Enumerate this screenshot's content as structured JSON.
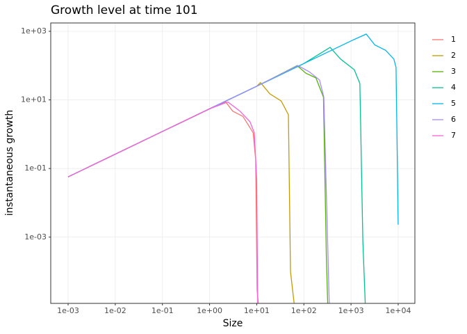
{
  "chart_data": {
    "type": "line",
    "title": "Growth level at time 101",
    "x_label": "Size",
    "y_label": "instantaneous growth",
    "log_x": true,
    "log_y": true,
    "grid": true,
    "xlim": [
      0.000428,
      22600
    ],
    "ylim": [
      1.17e-05,
      1750
    ],
    "xticks": [
      {
        "value": 0.001,
        "label": "1e-03"
      },
      {
        "value": 0.01,
        "label": "1e-02"
      },
      {
        "value": 0.1,
        "label": "1e-01"
      },
      {
        "value": 1,
        "label": "1e+00"
      },
      {
        "value": 10,
        "label": "1e+01"
      },
      {
        "value": 100,
        "label": "1e+02"
      },
      {
        "value": 1000,
        "label": "1e+03"
      },
      {
        "value": 10000,
        "label": "1e+04"
      }
    ],
    "yticks": [
      {
        "value": 0.001,
        "label": "1e-03"
      },
      {
        "value": 0.1,
        "label": "1e-01"
      },
      {
        "value": 10,
        "label": "1e+01"
      },
      {
        "value": 1000,
        "label": "1e+03"
      }
    ],
    "series": [
      {
        "name": "1",
        "color": "#F8766D",
        "x": [
          0.001,
          0.1,
          1,
          2.2,
          3.1,
          5.1,
          8.4,
          9.5,
          10.2,
          10.8
        ],
        "values": [
          0.057,
          1.2,
          5.5,
          8.7,
          4.7,
          3.3,
          1.1,
          0.18,
          3e-05,
          1.2e-05
        ]
      },
      {
        "name": "2",
        "color": "#C49A00",
        "x": [
          0.001,
          0.1,
          1,
          10,
          12,
          19,
          33,
          47,
          52,
          62
        ],
        "values": [
          0.057,
          1.2,
          5.5,
          25,
          32,
          15,
          9.3,
          3.7,
          0.0001,
          1.2e-05
        ]
      },
      {
        "name": "3",
        "color": "#53B400",
        "x": [
          0.001,
          0.1,
          1,
          10,
          72,
          110,
          180,
          260,
          300,
          320
        ],
        "values": [
          0.057,
          1.2,
          5.5,
          25,
          100,
          60,
          44,
          12,
          0.00026,
          1.2e-05
        ]
      },
      {
        "name": "4",
        "color": "#00C094",
        "x": [
          0.001,
          0.1,
          1,
          10,
          100,
          360,
          600,
          1170,
          1540,
          1780,
          2000
        ],
        "values": [
          0.057,
          1.2,
          5.5,
          25,
          115,
          340,
          155,
          76,
          30,
          0.0008,
          1.2e-05
        ]
      },
      {
        "name": "5",
        "color": "#00B6EB",
        "x": [
          0.001,
          0.1,
          1,
          10,
          100,
          1000,
          2100,
          3200,
          5400,
          8100,
          9000,
          10000
        ],
        "values": [
          0.057,
          1.2,
          5.5,
          25,
          115,
          525,
          830,
          400,
          280,
          155,
          89,
          0.0023
        ]
      },
      {
        "name": "6",
        "color": "#A58AFF",
        "x": [
          0.001,
          0.1,
          1,
          10,
          75,
          130,
          215,
          265,
          345
        ],
        "values": [
          0.057,
          1.2,
          5.5,
          25,
          100,
          66,
          38,
          12,
          1.2e-05
        ]
      },
      {
        "name": "7",
        "color": "#FB61D7",
        "x": [
          0.001,
          0.1,
          1,
          2.45,
          4.4,
          7.2,
          8.9,
          10,
          10.5
        ],
        "values": [
          0.057,
          1.2,
          5.5,
          8.7,
          4.7,
          2.3,
          1.1,
          0.045,
          1.2e-05
        ]
      }
    ]
  }
}
